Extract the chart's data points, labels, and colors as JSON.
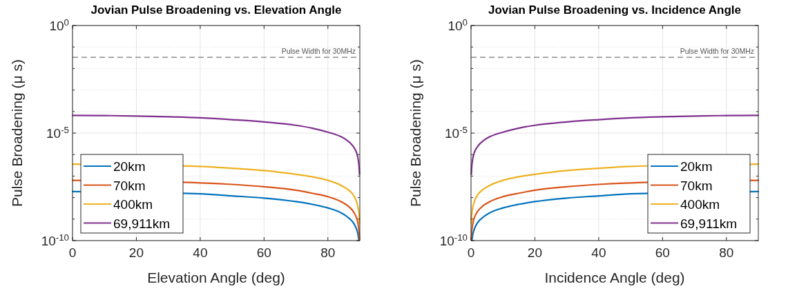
{
  "chart_data": [
    {
      "type": "line",
      "title": "Jovian Pulse Broadening vs. Elevation Angle",
      "xlabel": "Elevation Angle (deg)",
      "ylabel": "Pulse Broadening (μ s)",
      "log": "y",
      "grid": true,
      "legend": "bottom left",
      "line_style": "solid",
      "marker": "none",
      "xlim": [
        0,
        90
      ],
      "xticks": [
        0,
        20,
        40,
        60,
        80
      ],
      "ylim": [
        1e-10,
        1
      ],
      "yticks": [
        {
          "value": 1e-10,
          "label": "10$^{-10}$"
        },
        {
          "value": 1e-09,
          "label": null
        },
        {
          "value": 1e-08,
          "label": null
        },
        {
          "value": 1e-07,
          "label": null
        },
        {
          "value": 1e-06,
          "label": null
        },
        {
          "value": 1e-05,
          "label": "10$^{-5}$"
        },
        {
          "value": 0.0001,
          "label": null
        },
        {
          "value": 0.001,
          "label": null
        },
        {
          "value": 0.01,
          "label": null
        },
        {
          "value": 0.1,
          "label": null
        },
        {
          "value": 1,
          "label": "10$^{0}$"
        }
      ],
      "ref_lines": [
        {
          "axis": "y",
          "value": 0.0333,
          "label": "Pulse Width for 30MHz",
          "color": "#555555",
          "line_style": "dashed"
        }
      ],
      "series": [
        {
          "name": "20km",
          "color": "#0072bd",
          "x": [
            0,
            40,
            50,
            60,
            70,
            75,
            80,
            84,
            86,
            88,
            89,
            89.5,
            89.7
          ],
          "values": [
            1.9e-08,
            1.5e-08,
            1.2e-08,
            9.5e-09,
            6.5e-09,
            4.9e-09,
            3.3e-09,
            2e-09,
            1.3e-09,
            6.6e-10,
            3.3e-10,
            1.7e-10,
            1e-10
          ]
        },
        {
          "name": "70km",
          "color": "#d95319",
          "x": [
            0,
            40,
            50,
            60,
            70,
            75,
            80,
            84,
            86,
            88,
            89,
            89.5,
            89.8,
            89.9
          ],
          "values": [
            6.3e-08,
            4.8e-08,
            4.1e-08,
            3.2e-08,
            2.2e-08,
            1.6e-08,
            1.1e-08,
            6.6e-09,
            4.4e-09,
            2.2e-09,
            1.1e-09,
            5.5e-10,
            2.2e-10,
            1.1e-10
          ]
        },
        {
          "name": "400km",
          "color": "#edb120",
          "x": [
            0,
            40,
            50,
            60,
            70,
            75,
            80,
            84,
            86,
            88,
            89,
            89.5,
            89.8,
            89.9
          ],
          "values": [
            3.6e-07,
            2.8e-07,
            2.3e-07,
            1.8e-07,
            1.2e-07,
            9.3e-08,
            6.3e-08,
            3.8e-08,
            2.5e-08,
            1.3e-08,
            6.3e-09,
            3.1e-09,
            1.3e-09,
            6.3e-10
          ]
        },
        {
          "name": "69,911km",
          "color": "#7e2f8e",
          "x": [
            0,
            10,
            20,
            30,
            40,
            50,
            60,
            70,
            75,
            80,
            84,
            86,
            88,
            89,
            89.5,
            89.8,
            89.9
          ],
          "values": [
            6.6e-05,
            6.5e-05,
            6.2e-05,
            5.7e-05,
            5.1e-05,
            4.2e-05,
            3.3e-05,
            2.3e-05,
            1.7e-05,
            1.1e-05,
            6.9e-06,
            4.6e-06,
            2.3e-06,
            1.2e-06,
            5.8e-07,
            2.3e-07,
            1.2e-07
          ]
        }
      ]
    },
    {
      "type": "line",
      "title": "Jovian Pulse Broadening vs. Incidence Angle",
      "xlabel": "Incidence Angle (deg)",
      "ylabel": "Pulse Broadening (μ s)",
      "log": "y",
      "grid": true,
      "legend": "bottom right",
      "line_style": "solid",
      "marker": "none",
      "xlim": [
        0,
        90
      ],
      "xticks": [
        0,
        20,
        40,
        60,
        80
      ],
      "ylim": [
        1e-10,
        1
      ],
      "yticks": [
        {
          "value": 1e-10,
          "label": "10$^{-10}$"
        },
        {
          "value": 1e-09,
          "label": null
        },
        {
          "value": 1e-08,
          "label": null
        },
        {
          "value": 1e-07,
          "label": null
        },
        {
          "value": 1e-06,
          "label": null
        },
        {
          "value": 1e-05,
          "label": "10$^{-5}$"
        },
        {
          "value": 0.0001,
          "label": null
        },
        {
          "value": 0.001,
          "label": null
        },
        {
          "value": 0.01,
          "label": null
        },
        {
          "value": 0.1,
          "label": null
        },
        {
          "value": 1,
          "label": "10$^{0}$"
        }
      ],
      "ref_lines": [
        {
          "axis": "y",
          "value": 0.0333,
          "label": "Pulse Width for 30MHz",
          "color": "#555555",
          "line_style": "dashed"
        }
      ],
      "series": [
        {
          "name": "20km",
          "color": "#0072bd",
          "x": [
            0.3,
            0.5,
            1,
            2,
            4,
            6,
            10,
            15,
            20,
            30,
            40,
            50,
            90
          ],
          "values": [
            1e-10,
            1.7e-10,
            3.3e-10,
            6.6e-10,
            1.3e-09,
            2e-09,
            3.3e-09,
            4.9e-09,
            6.5e-09,
            9.5e-09,
            1.2e-08,
            1.5e-08,
            1.9e-08
          ]
        },
        {
          "name": "70km",
          "color": "#d95319",
          "x": [
            0.1,
            0.2,
            0.5,
            1,
            2,
            4,
            6,
            10,
            15,
            20,
            30,
            40,
            50,
            90
          ],
          "values": [
            1.1e-10,
            2.2e-10,
            5.5e-10,
            1.1e-09,
            2.2e-09,
            4.4e-09,
            6.6e-09,
            1.1e-08,
            1.6e-08,
            2.2e-08,
            3.2e-08,
            4.1e-08,
            4.8e-08,
            6.3e-08
          ]
        },
        {
          "name": "400km",
          "color": "#edb120",
          "x": [
            0.1,
            0.2,
            0.5,
            1,
            2,
            4,
            6,
            10,
            15,
            20,
            30,
            40,
            50,
            90
          ],
          "values": [
            6.3e-10,
            1.3e-09,
            3.1e-09,
            6.3e-09,
            1.3e-08,
            2.5e-08,
            3.8e-08,
            6.3e-08,
            9.3e-08,
            1.2e-07,
            1.8e-07,
            2.3e-07,
            2.8e-07,
            3.6e-07
          ]
        },
        {
          "name": "69,911km",
          "color": "#7e2f8e",
          "x": [
            0.1,
            0.2,
            0.5,
            1,
            2,
            4,
            6,
            10,
            15,
            20,
            30,
            40,
            50,
            60,
            70,
            80,
            90
          ],
          "values": [
            1.2e-07,
            2.3e-07,
            5.8e-07,
            1.2e-06,
            2.3e-06,
            4.6e-06,
            6.9e-06,
            1.1e-05,
            1.7e-05,
            2.3e-05,
            3.3e-05,
            4.2e-05,
            5.1e-05,
            5.7e-05,
            6.2e-05,
            6.5e-05,
            6.6e-05
          ]
        }
      ]
    }
  ]
}
